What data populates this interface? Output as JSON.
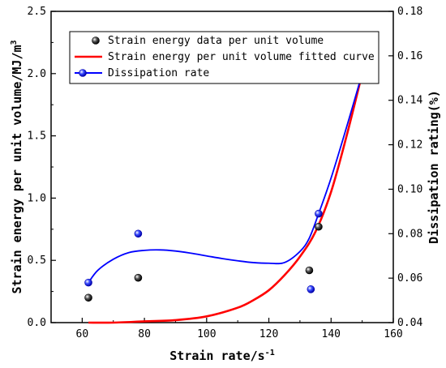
{
  "chart_data": {
    "type": "scatter",
    "xlabel": "Strain rate/s",
    "xlabel_sup": "-1",
    "ylabel_left": "Strain energy per unit volume/MJ/m",
    "ylabel_left_sup": "3",
    "ylabel_right": "Dissipation rating(%)",
    "xlim": [
      50,
      160
    ],
    "ylim_left": [
      0,
      2.5
    ],
    "ylim_right": [
      0.04,
      0.18
    ],
    "x_ticks": [
      60,
      80,
      100,
      120,
      140,
      160
    ],
    "x_tick_labels": [
      "60",
      "80",
      "100",
      "120",
      "140",
      "160"
    ],
    "y_left_ticks": [
      0.0,
      0.5,
      1.0,
      1.5,
      2.0,
      2.5
    ],
    "y_left_tick_labels": [
      "0.0",
      "0.5",
      "1.0",
      "1.5",
      "2.0",
      "2.5"
    ],
    "y_right_ticks": [
      0.04,
      0.06,
      0.08,
      0.1,
      0.12,
      0.14,
      0.16,
      0.18
    ],
    "y_right_tick_labels": [
      "0.04",
      "0.06",
      "0.08",
      "0.10",
      "0.12",
      "0.14",
      "0.16",
      "0.18"
    ],
    "grid": false,
    "legend_position": "top",
    "series": [
      {
        "name": "Strain energy data per unit volume",
        "kind": "scatter",
        "axis": "left",
        "color": "#000000",
        "x": [
          62,
          78,
          133,
          136
        ],
        "y": [
          0.2,
          0.36,
          0.42,
          0.77
        ]
      },
      {
        "name": "Strain energy per unit volume fitted curve",
        "kind": "line",
        "axis": "left",
        "color": "#ff0000",
        "x": [
          62,
          70,
          80,
          90,
          100,
          110,
          115,
          120,
          125,
          130,
          135,
          140,
          145,
          150
        ],
        "y": [
          0.0,
          0.0,
          0.01,
          0.02,
          0.05,
          0.12,
          0.18,
          0.26,
          0.38,
          0.53,
          0.73,
          1.05,
          1.5,
          2.0
        ]
      },
      {
        "name": "Dissipation rate",
        "kind": "line+scatter",
        "axis": "right",
        "color": "#0000ff",
        "points_x": [
          62,
          78,
          133.5,
          136
        ],
        "points_y": [
          0.058,
          0.08,
          0.055,
          0.089
        ],
        "x": [
          62,
          65,
          70,
          75,
          80,
          85,
          90,
          95,
          100,
          105,
          110,
          115,
          120,
          125,
          130,
          133,
          136,
          140,
          145,
          150
        ],
        "y": [
          0.058,
          0.0635,
          0.0685,
          0.0715,
          0.0725,
          0.0727,
          0.0722,
          0.0712,
          0.07,
          0.0688,
          0.0678,
          0.067,
          0.0667,
          0.067,
          0.072,
          0.078,
          0.089,
          0.105,
          0.128,
          0.152
        ]
      }
    ]
  }
}
